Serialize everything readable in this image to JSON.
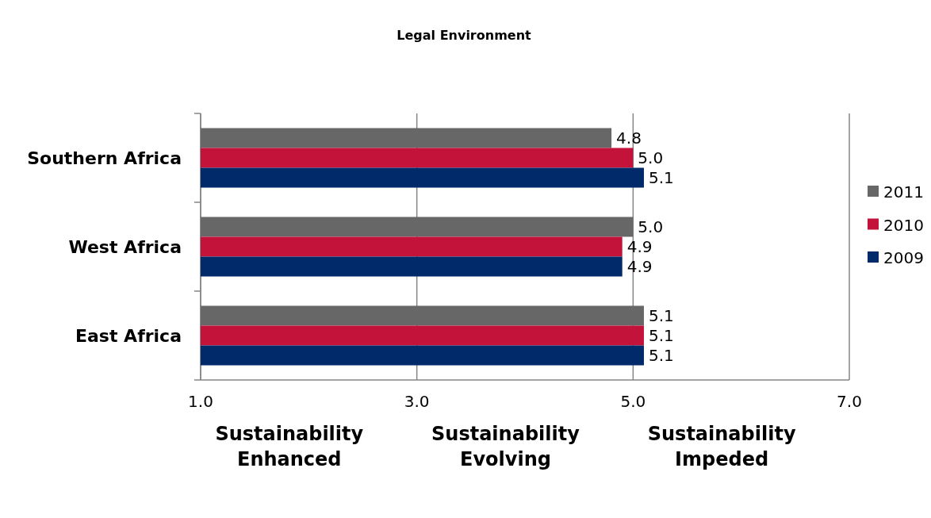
{
  "chart_data": {
    "type": "bar",
    "orientation": "horizontal",
    "title": "Legal Environment",
    "categories": [
      "Southern Africa",
      "West Africa",
      "East Africa"
    ],
    "series": [
      {
        "name": "2011",
        "color": "#676767",
        "values": [
          4.8,
          5.0,
          5.1
        ],
        "value_labels": [
          "4.8",
          "5.0",
          "5.1"
        ]
      },
      {
        "name": "2010",
        "color": "#c3133b",
        "values": [
          5.0,
          4.9,
          5.1
        ],
        "value_labels": [
          "5.0",
          "4.9",
          "5.1"
        ]
      },
      {
        "name": "2009",
        "color": "#002a6a",
        "values": [
          5.1,
          4.9,
          5.1
        ],
        "value_labels": [
          "5.1",
          "4.9",
          "5.1"
        ]
      }
    ],
    "xlim": [
      1,
      7
    ],
    "xticks": [
      {
        "value": 1,
        "label": "1.0"
      },
      {
        "value": 3,
        "label": "3.0"
      },
      {
        "value": 5,
        "label": "5.0"
      },
      {
        "value": 7,
        "label": "7.0"
      }
    ],
    "grid": "x",
    "legend": "right",
    "annotations": [
      "Sustainability Enhanced",
      "Sustainability Evolving",
      "Sustainability Impeded"
    ]
  }
}
